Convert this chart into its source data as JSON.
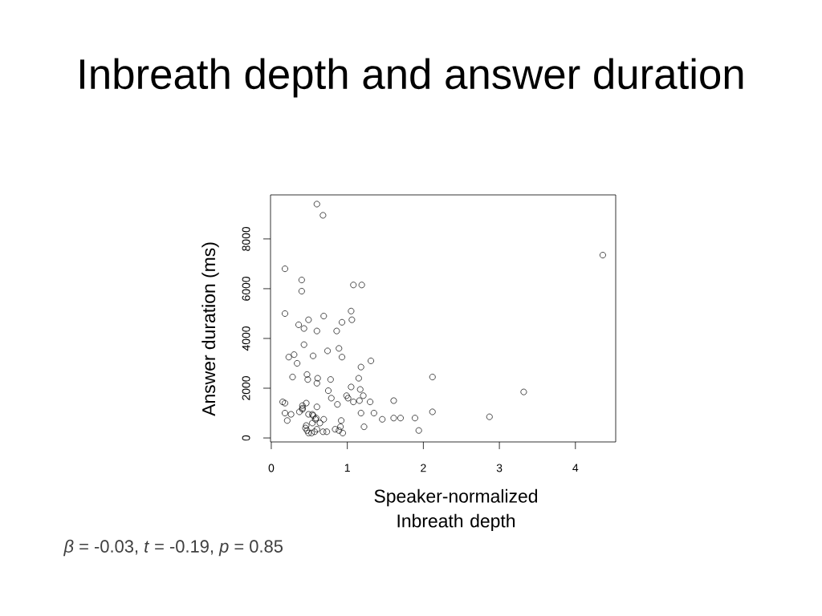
{
  "chart_data": {
    "type": "scatter",
    "title": "Inbreath depth and answer duration",
    "xlabel": "Speaker-normalized Inbreath depth",
    "ylabel": "Answer duration (ms)",
    "annotations": [
      "*β* = -0.03, *t* = -0.19, *p* = 0.85"
    ],
    "x": [
      0.6,
      0.68,
      0.18,
      0.4,
      0.4,
      1.08,
      1.19,
      0.18,
      0.49,
      0.69,
      0.93,
      1.05,
      1.06,
      0.36,
      0.43,
      0.6,
      0.86,
      0.43,
      0.74,
      0.89,
      0.23,
      0.3,
      0.55,
      0.93,
      0.34,
      1.31,
      1.18,
      0.28,
      0.47,
      0.48,
      0.61,
      0.6,
      0.78,
      1.15,
      1.05,
      1.17,
      0.75,
      0.79,
      0.99,
      1.01,
      1.08,
      1.16,
      1.21,
      1.3,
      0.87,
      1.61,
      0.15,
      0.18,
      0.41,
      0.46,
      0.41,
      0.41,
      0.37,
      0.6,
      0.18,
      0.26,
      0.21,
      0.49,
      0.54,
      0.55,
      0.59,
      0.58,
      0.69,
      0.64,
      0.54,
      0.92,
      1.18,
      1.35,
      1.46,
      1.22,
      0.46,
      0.45,
      0.47,
      0.49,
      0.53,
      0.57,
      0.6,
      0.68,
      0.73,
      0.84,
      0.89,
      0.91,
      0.94,
      4.36,
      2.12,
      3.32,
      1.61,
      1.7,
      1.89,
      2.12,
      2.87,
      1.94
    ],
    "values": [
      9400,
      8950,
      6800,
      6350,
      5900,
      6150,
      6150,
      5000,
      4750,
      4900,
      4650,
      5100,
      4750,
      4550,
      4400,
      4300,
      4300,
      3750,
      3500,
      3600,
      3250,
      3350,
      3300,
      3250,
      3000,
      3100,
      2850,
      2450,
      2550,
      2350,
      2400,
      2200,
      2350,
      2400,
      2050,
      1950,
      1900,
      1600,
      1700,
      1600,
      1450,
      1500,
      1700,
      1450,
      1350,
      1500,
      1450,
      1400,
      1300,
      1400,
      1200,
      1150,
      1050,
      1250,
      1000,
      950,
      700,
      950,
      950,
      900,
      800,
      750,
      750,
      600,
      600,
      700,
      1000,
      1000,
      750,
      450,
      500,
      400,
      300,
      200,
      200,
      250,
      350,
      250,
      250,
      350,
      300,
      450,
      200,
      7350,
      2450,
      1850,
      800,
      800,
      800,
      1050,
      850,
      300
    ],
    "color": "#000000",
    "marker": "circle",
    "xlim": [
      -0.01,
      4.53
    ],
    "ylim": [
      -160,
      9770
    ],
    "xticks": [
      0,
      1,
      2,
      3,
      4
    ],
    "yticks": [
      0,
      2000,
      4000,
      6000,
      8000
    ]
  }
}
